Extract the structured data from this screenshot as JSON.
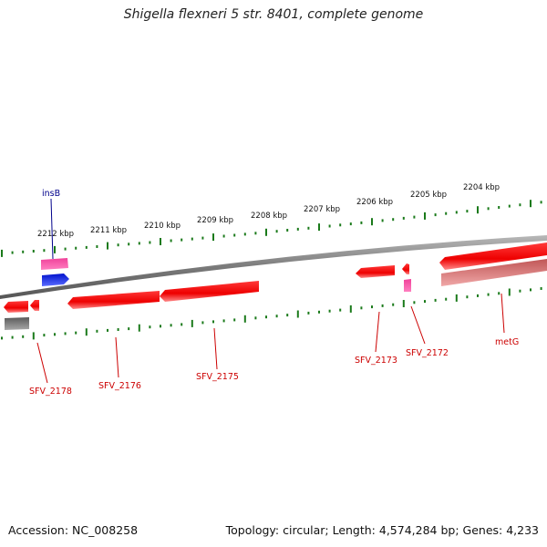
{
  "title": "Shigella flexneri 5 str. 8401, complete genome",
  "footer": {
    "accession": "Accession: NC_008258",
    "summary": "Topology: circular; Length: 4,574,284 bp; Genes: 4,233"
  },
  "colors": {
    "backbone": "#808080",
    "tick": "#1a7a1a",
    "gene_red": "#ff1a1a",
    "gene_pink": "#e0267a",
    "gene_blue": "#0a1fe0",
    "gene_gray": "#606060",
    "gene_faded": "#d86a6a",
    "label_red": "#cc0000",
    "label_blue": "#00008b"
  },
  "kbp_labels": [
    "2212 kbp",
    "2211 kbp",
    "2210 kbp",
    "2209 kbp",
    "2208 kbp",
    "2207 kbp",
    "2206 kbp",
    "2205 kbp",
    "2204 kbp"
  ],
  "gene_labels": {
    "insB": "insB",
    "SFV_2178": "SFV_2178",
    "SFV_2176": "SFV_2176",
    "SFV_2175": "SFV_2175",
    "SFV_2173": "SFV_2173",
    "SFV_2172": "SFV_2172",
    "metG": "metG"
  }
}
